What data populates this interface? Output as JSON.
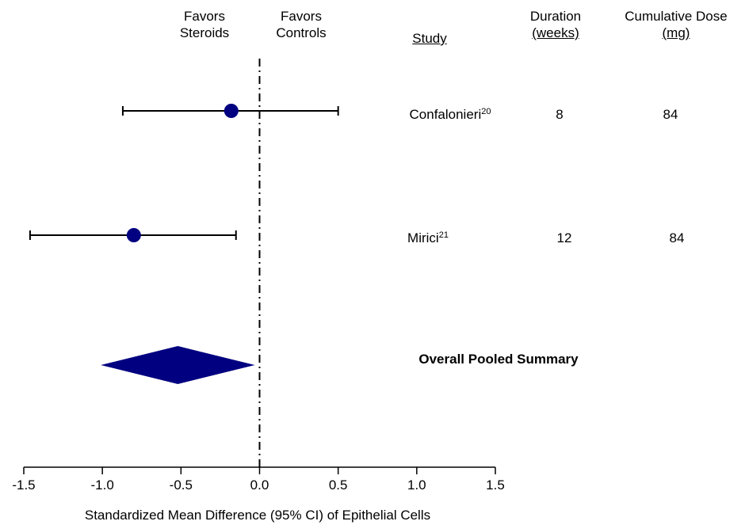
{
  "chart_data": {
    "type": "forest",
    "xlabel": "Standardized Mean Difference (95% CI) of Epithelial Cells",
    "xlim": [
      -1.5,
      1.5
    ],
    "xticks": [
      -1.5,
      -1.0,
      -0.5,
      0.0,
      0.5,
      1.0,
      1.5
    ],
    "xtick_labels": [
      "-1.5",
      "-1.0",
      "-0.5",
      "0.0",
      "0.5",
      "1.0",
      "1.5"
    ],
    "reference_line": 0.0,
    "favors_left": [
      "Favors",
      "Steroids"
    ],
    "favors_right": [
      "Favors",
      "Controls"
    ],
    "column_headers": {
      "study": "Study",
      "duration": [
        "Duration",
        "(weeks)"
      ],
      "dose": [
        "Cumulative Dose",
        "(mg)"
      ]
    },
    "studies": [
      {
        "name": "Confalonieri",
        "ref": "20",
        "smd": -0.18,
        "ci_low": -0.87,
        "ci_high": 0.5,
        "duration": "8",
        "dose": "84"
      },
      {
        "name": "Mirici",
        "ref": "21",
        "smd": -0.8,
        "ci_low": -1.46,
        "ci_high": -0.15,
        "duration": "12",
        "dose": "84"
      }
    ],
    "pooled": {
      "label": "Overall Pooled Summary",
      "smd": -0.52,
      "ci_low": -1.01,
      "ci_high": -0.03
    },
    "colors": {
      "marker": "#000080",
      "lines": "#000000"
    }
  }
}
